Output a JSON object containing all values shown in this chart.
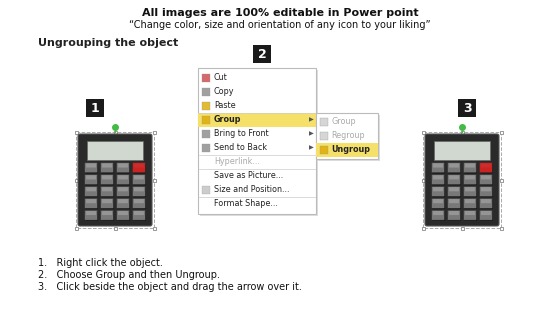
{
  "title_line1": "All images are 100% editable in Power point",
  "title_line2": "“Change color, size and orientation of any icon to your liking”",
  "section_title": "Ungrouping the object",
  "badge1": "1",
  "badge2": "2",
  "badge3": "3",
  "menu_items": [
    "Cut",
    "Copy",
    "Paste",
    "Group",
    "Bring to Front",
    "Send to Back",
    "Hyperlink...",
    "Save as Picture...",
    "Size and Position...",
    "Format Shape..."
  ],
  "submenu_items": [
    "Group",
    "Regroup",
    "Ungroup"
  ],
  "bullet1": "1.   Right click the object.",
  "bullet2": "2.   Choose Group and then Ungroup.",
  "bullet3": "3.   Click beside the object and drag the arrow over it.",
  "bg_color": "#ffffff",
  "badge_bg": "#1a1a1a",
  "badge_text": "#ffffff",
  "menu_bg": "#ffffff",
  "menu_border": "#bbbbbb",
  "group_highlight": "#f5e06a",
  "ungroup_highlight": "#f5e06a",
  "text_color": "#111111",
  "title_bold_color": "#111111",
  "section_color": "#222222",
  "calc_body": "#2a2a2a",
  "calc_screen": "#d0d8d0",
  "calc_btn": "#888888",
  "calc_btn_red": "#cc2222",
  "handle_color": "#888888",
  "dot_color": "#44bb44"
}
